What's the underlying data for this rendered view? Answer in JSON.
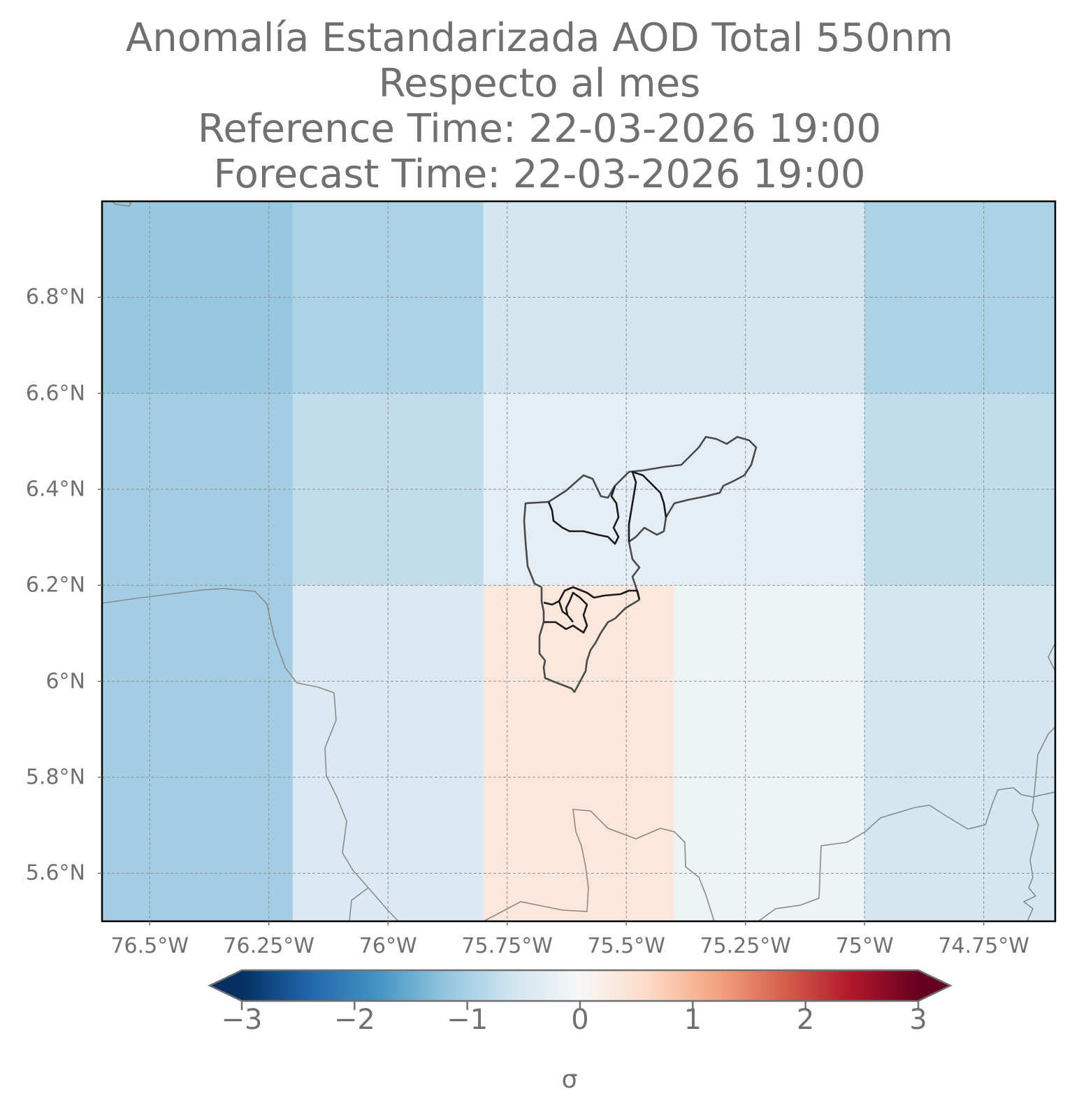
{
  "title": {
    "line1": "Anomalía Estandarizada AOD Total 550nm",
    "line2": "Respecto al mes",
    "line3": "Reference Time: 22-03-2026 19:00",
    "line4": "Forecast Time: 22-03-2026 19:00"
  },
  "map": {
    "lon_range": [
      -76.6,
      -74.6
    ],
    "lat_range": [
      5.5,
      7.0
    ],
    "lat_ticks": [
      {
        "value": 6.8,
        "label": "6.8°N"
      },
      {
        "value": 6.6,
        "label": "6.6°N"
      },
      {
        "value": 6.4,
        "label": "6.4°N"
      },
      {
        "value": 6.2,
        "label": "6.2°N"
      },
      {
        "value": 6.0,
        "label": "6°N"
      },
      {
        "value": 5.8,
        "label": "5.8°N"
      },
      {
        "value": 5.6,
        "label": "5.6°N"
      }
    ],
    "lon_ticks": [
      {
        "value": -76.5,
        "label": "76.5°W"
      },
      {
        "value": -76.25,
        "label": "76.25°W"
      },
      {
        "value": -76.0,
        "label": "76°W"
      },
      {
        "value": -75.75,
        "label": "75.75°W"
      },
      {
        "value": -75.5,
        "label": "75.5°W"
      },
      {
        "value": -75.25,
        "label": "75.25°W"
      },
      {
        "value": -75.0,
        "label": "75°W"
      },
      {
        "value": -74.75,
        "label": "74.75°W"
      }
    ],
    "grid": true,
    "cell_lon_edges": [
      -76.6,
      -76.2,
      -75.8,
      -75.4,
      -75.0,
      -74.6
    ],
    "cell_lat_edges": [
      7.0,
      6.6,
      6.2,
      5.5
    ],
    "anomaly_rows": [
      [
        -1.15,
        -0.95,
        -0.55,
        -0.55,
        -0.95
      ],
      [
        -1.05,
        -0.75,
        -0.3,
        -0.3,
        -0.75
      ],
      [
        -1.05,
        -0.45,
        0.35,
        -0.15,
        -0.55
      ]
    ],
    "colors": {
      "boundary": "#8a8a8a",
      "region_outline": "#1a1a1a"
    }
  },
  "colorbar": {
    "min": -3,
    "max": 3,
    "ticks": [
      "−3",
      "−2",
      "−1",
      "0",
      "1",
      "2",
      "3"
    ],
    "label": "σ",
    "extend": "both",
    "cmap": "RdBu_r"
  }
}
